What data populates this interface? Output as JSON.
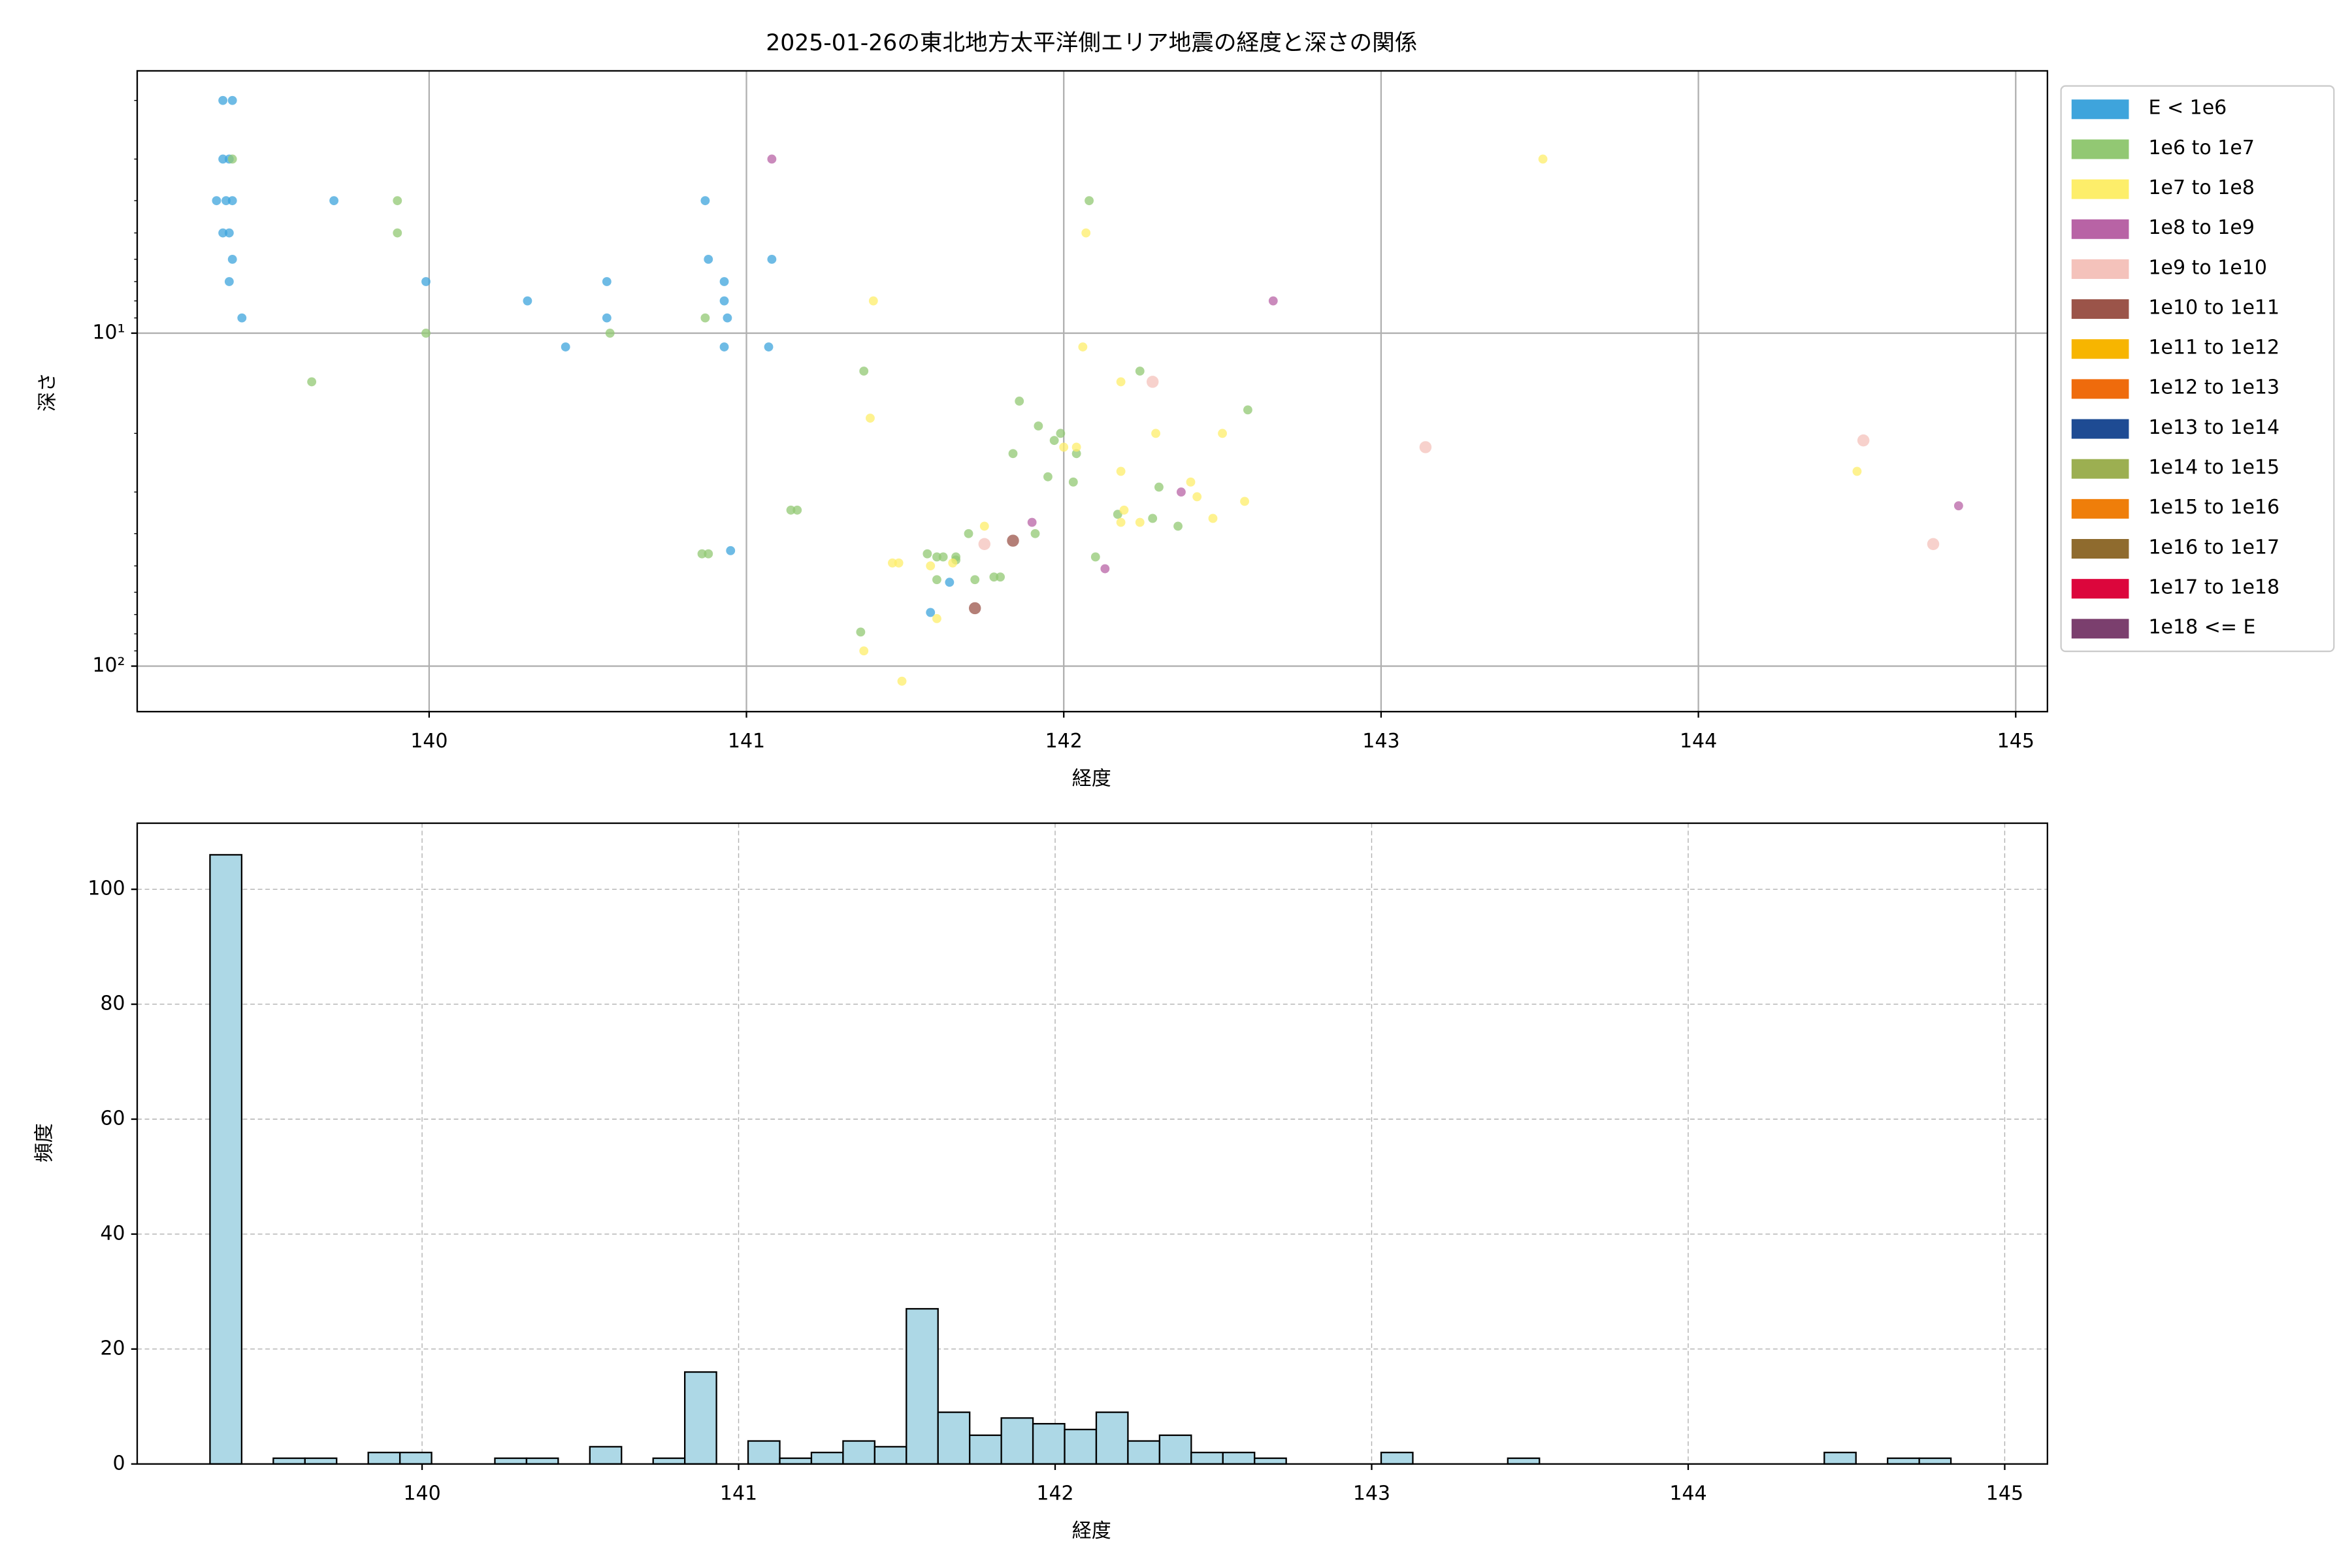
{
  "chart_data": [
    {
      "type": "scatter",
      "title": "2025-01-26の東北地方太平洋側エリア地震の経度と深さの関係",
      "x_label": "経度",
      "y_label": "深さ",
      "xlim": [
        139.08,
        145.1
      ],
      "xticks": [
        140,
        141,
        142,
        143,
        144,
        145
      ],
      "ylim": [
        1.63,
        137
      ],
      "y_log": true,
      "y_inverted": true,
      "yticks": [
        {
          "value": 10,
          "label": "10¹"
        },
        {
          "value": 100,
          "label": "10²"
        }
      ],
      "grid": true,
      "legend": "outside-right",
      "series": [
        {
          "name": "E < 1e6",
          "color": "#3ea4dc",
          "x": [
            139.35,
            139.38,
            139.35,
            139.37,
            139.33,
            139.36,
            139.38,
            139.35,
            139.37,
            139.38,
            139.37,
            139.41,
            139.7,
            139.99,
            140.31,
            140.43,
            140.56,
            140.56,
            140.87,
            140.88,
            140.93,
            140.93,
            140.94,
            140.93,
            141.08,
            141.07,
            140.95,
            141.58,
            141.64
          ],
          "y": [
            2,
            2,
            3,
            3,
            4,
            4,
            4,
            5,
            5,
            6,
            7,
            9,
            4,
            7,
            8,
            11,
            7,
            9,
            4,
            6,
            7,
            8,
            9,
            11,
            6,
            11,
            45,
            69,
            56
          ]
        },
        {
          "name": "1e6 to 1e7",
          "color": "#92c873",
          "x": [
            139.38,
            139.9,
            139.9,
            139.63,
            139.99,
            140.57,
            140.87,
            140.86,
            140.88,
            141.14,
            141.16,
            141.37,
            141.36,
            141.57,
            141.6,
            141.62,
            141.66,
            141.7,
            141.6,
            141.72,
            141.78,
            141.8,
            141.86,
            141.84,
            141.92,
            141.95,
            141.97,
            142.04,
            142.08,
            141.99,
            142.03,
            142.1,
            142.17,
            142.24,
            142.28,
            142.3,
            142.36,
            142.58,
            141.91,
            141.66
          ],
          "y": [
            3,
            4,
            5,
            14,
            10,
            10,
            9,
            46,
            46,
            34,
            34,
            13,
            79,
            46,
            47,
            47,
            47,
            40,
            55,
            55,
            54,
            54,
            16,
            23,
            19,
            27,
            21,
            23,
            4,
            20,
            28,
            47,
            35,
            13,
            36,
            29,
            38,
            17,
            40,
            48
          ]
        },
        {
          "name": "1e7 to 1e8",
          "color": "#fdee6a",
          "x": [
            141.4,
            141.39,
            141.37,
            141.49,
            141.58,
            141.46,
            141.6,
            141.65,
            141.75,
            142.06,
            142.07,
            142.0,
            142.18,
            142.18,
            142.19,
            142.18,
            142.24,
            142.29,
            142.4,
            142.42,
            142.5,
            142.47,
            142.57,
            143.51,
            144.5,
            141.48,
            142.04
          ],
          "y": [
            8,
            18,
            90,
            111,
            50,
            49,
            72,
            49,
            38,
            11,
            5,
            22,
            14,
            26,
            34,
            37,
            37,
            20,
            28,
            31,
            20,
            36,
            32,
            3,
            26,
            49,
            22
          ]
        },
        {
          "name": "1e8 to 1e9",
          "color": "#b863a5",
          "x": [
            141.08,
            142.66,
            141.9,
            142.37,
            142.13,
            144.82
          ],
          "y": [
            3,
            8,
            37,
            30,
            51,
            33
          ]
        },
        {
          "name": "1e9 to 1e10",
          "color": "#f4c2bb",
          "x": [
            141.75,
            142.28,
            143.14,
            144.52,
            144.74
          ],
          "y": [
            43,
            14,
            22,
            21,
            43
          ]
        },
        {
          "name": "1e10 to 1e11",
          "color": "#9b5449",
          "x": [
            141.72,
            141.84
          ],
          "y": [
            67,
            42
          ]
        },
        {
          "name": "1e11 to 1e12",
          "color": "#f7b500",
          "x": [],
          "y": []
        },
        {
          "name": "1e12 to 1e13",
          "color": "#ef6b0c",
          "x": [],
          "y": []
        },
        {
          "name": "1e13 to 1e14",
          "color": "#1e4b93",
          "x": [],
          "y": []
        },
        {
          "name": "1e14 to 1e15",
          "color": "#9caf51",
          "x": [],
          "y": []
        },
        {
          "name": "1e15 to 1e16",
          "color": "#ef7e0a",
          "x": [],
          "y": []
        },
        {
          "name": "1e16 to 1e17",
          "color": "#8f6b2e",
          "x": [],
          "y": []
        },
        {
          "name": "1e17 to 1e18",
          "color": "#dc063c",
          "x": [],
          "y": []
        },
        {
          "name": "1e18 <= E",
          "color": "#7b3f6e",
          "x": [],
          "y": []
        }
      ]
    },
    {
      "type": "histogram",
      "x_label": "経度",
      "y_label": "頻度",
      "color": "#add8e6",
      "xlim": [
        139.1,
        145.135
      ],
      "xticks": [
        140,
        141,
        142,
        143,
        144,
        145
      ],
      "ylim": [
        0,
        111.5
      ],
      "yticks": [
        0,
        20,
        40,
        60,
        80,
        100
      ],
      "grid": true,
      "bins": [
        139.33,
        139.43,
        139.53,
        139.63,
        139.73,
        139.83,
        139.93,
        140.03,
        140.13,
        140.23,
        140.33,
        140.43,
        140.53,
        140.63,
        140.73,
        140.83,
        140.93,
        141.03,
        141.13,
        141.23,
        141.33,
        141.43,
        141.53,
        141.63,
        141.73,
        141.83,
        141.93,
        142.03,
        142.13,
        142.23,
        142.33,
        142.43,
        142.53,
        142.63,
        142.73,
        142.83,
        142.93,
        143.03,
        143.13,
        143.23,
        143.33,
        143.43,
        143.53,
        143.63,
        143.73,
        143.83,
        143.93,
        144.03,
        144.13,
        144.23,
        144.33,
        144.43,
        144.53,
        144.63,
        144.73,
        144.83
      ],
      "counts": [
        106,
        0,
        1,
        1,
        0,
        2,
        2,
        0,
        0,
        1,
        1,
        0,
        3,
        0,
        1,
        16,
        0,
        4,
        1,
        2,
        4,
        3,
        27,
        9,
        5,
        8,
        7,
        6,
        9,
        4,
        5,
        2,
        2,
        1,
        0,
        0,
        0,
        2,
        0,
        0,
        0,
        1,
        0,
        0,
        0,
        0,
        0,
        0,
        0,
        0,
        0,
        2,
        0,
        1,
        1
      ]
    }
  ]
}
